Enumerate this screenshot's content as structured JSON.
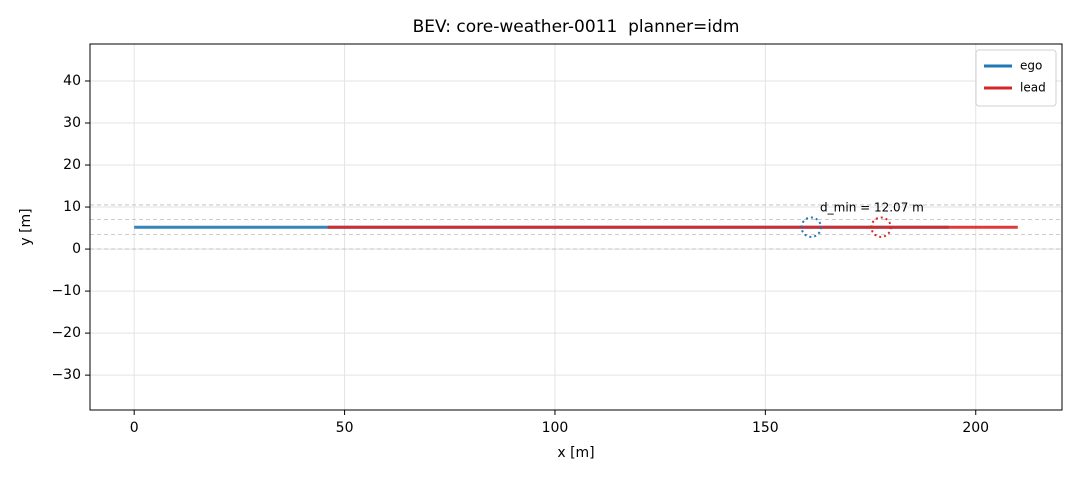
{
  "chart_data": {
    "type": "line",
    "title": "BEV: core-weather-0011  planner=idm",
    "x_label": "x [m]",
    "y_label": "y [m]",
    "xlim": [
      -10.5,
      220.5
    ],
    "ylim": [
      -38.3,
      48.8
    ],
    "xticks": [
      0,
      50,
      100,
      150,
      200
    ],
    "yticks": [
      {
        "value": -30,
        "label": "−30"
      },
      {
        "value": -20,
        "label": "−20"
      },
      {
        "value": -10,
        "label": "−10"
      },
      0,
      10,
      20,
      30,
      40
    ],
    "grid": true,
    "legend": "upper right",
    "lane_lines": [
      0,
      3.5,
      7,
      10.5
    ],
    "series": [
      {
        "name": "ego",
        "color": "#1f77b4",
        "x": [
          0,
          193.6
        ],
        "values": [
          5.2,
          5.2
        ]
      },
      {
        "name": "lead",
        "color": "#d62728",
        "x": [
          46,
          210
        ],
        "values": [
          5.2,
          5.2
        ]
      }
    ],
    "markers": [
      {
        "color": "#1f77b4",
        "x": 160.9,
        "y": 5.2,
        "r": 2.3
      },
      {
        "color": "#d62728",
        "x": 177.5,
        "y": 5.2,
        "r": 2.3
      }
    ],
    "annotations": [
      {
        "text": "d_min = 12.07 m",
        "x": 163,
        "y": 9.8
      }
    ]
  }
}
